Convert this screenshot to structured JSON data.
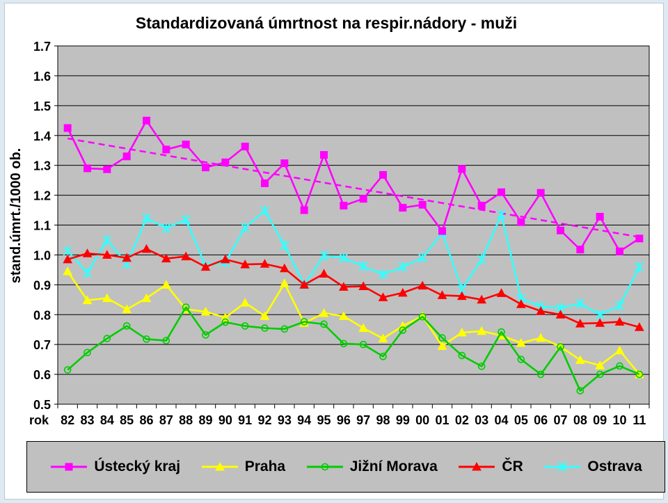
{
  "chart_data": {
    "type": "line",
    "title": "Standardizovaná úmrtnost na respir.nádory - muži",
    "ylabel": "stand.úmrt./1000 ob.",
    "xlabel": "rok",
    "ylim": [
      0.5,
      1.7
    ],
    "yticks": [
      "0.5",
      "0.6",
      "0.7",
      "0.8",
      "0.9",
      "1.0",
      "1.1",
      "1.2",
      "1.3",
      "1.4",
      "1.5",
      "1.6",
      "1.7"
    ],
    "categories": [
      "82",
      "83",
      "84",
      "85",
      "86",
      "87",
      "88",
      "89",
      "90",
      "91",
      "92",
      "93",
      "94",
      "95",
      "96",
      "97",
      "98",
      "99",
      "00",
      "01",
      "02",
      "03",
      "04",
      "05",
      "06",
      "07",
      "08",
      "09",
      "10",
      "11"
    ],
    "grid": true,
    "legend_position": "bottom",
    "trendline": {
      "series": "Ústecký kraj",
      "from": 1.39,
      "to": 1.06,
      "color": "#ff00ff"
    },
    "series": [
      {
        "name": "Ústecký kraj",
        "color": "#ff00ff",
        "marker": "square",
        "values": [
          1.425,
          1.29,
          1.287,
          1.33,
          1.45,
          1.353,
          1.37,
          1.293,
          1.31,
          1.363,
          1.24,
          1.307,
          1.15,
          1.335,
          1.165,
          1.188,
          1.268,
          1.158,
          1.168,
          1.08,
          1.288,
          1.165,
          1.21,
          1.11,
          1.208,
          1.082,
          1.018,
          1.128,
          1.012,
          1.055
        ]
      },
      {
        "name": "Praha",
        "color": "#ffff00",
        "marker": "triangle",
        "values": [
          0.945,
          0.848,
          0.855,
          0.818,
          0.855,
          0.9,
          0.818,
          0.81,
          0.79,
          0.84,
          0.795,
          0.905,
          0.772,
          0.805,
          0.795,
          0.755,
          0.72,
          0.762,
          0.795,
          0.695,
          0.74,
          0.745,
          0.73,
          0.705,
          0.722,
          0.693,
          0.648,
          0.63,
          0.68,
          0.6
        ]
      },
      {
        "name": "Jižní Morava",
        "color": "#00cc00",
        "marker": "circle",
        "values": [
          0.615,
          0.673,
          0.72,
          0.762,
          0.718,
          0.713,
          0.825,
          0.732,
          0.775,
          0.762,
          0.755,
          0.752,
          0.776,
          0.768,
          0.703,
          0.7,
          0.66,
          0.748,
          0.793,
          0.722,
          0.663,
          0.627,
          0.742,
          0.65,
          0.6,
          0.692,
          0.545,
          0.6,
          0.628,
          0.6
        ]
      },
      {
        "name": "ČR",
        "color": "#ff0000",
        "marker": "triangle",
        "values": [
          0.985,
          1.005,
          1.0,
          0.99,
          1.02,
          0.988,
          0.995,
          0.96,
          0.985,
          0.968,
          0.97,
          0.955,
          0.9,
          0.937,
          0.893,
          0.895,
          0.858,
          0.873,
          0.897,
          0.865,
          0.862,
          0.85,
          0.872,
          0.835,
          0.812,
          0.8,
          0.77,
          0.772,
          0.776,
          0.758
        ]
      },
      {
        "name": "Ostrava",
        "color": "#33ffff",
        "marker": "star",
        "values": [
          1.013,
          0.94,
          1.05,
          0.97,
          1.123,
          1.09,
          1.118,
          0.963,
          0.975,
          1.092,
          1.148,
          1.032,
          0.9,
          0.998,
          0.99,
          0.962,
          0.935,
          0.96,
          0.99,
          1.075,
          0.885,
          0.985,
          1.135,
          0.855,
          0.827,
          0.822,
          0.837,
          0.8,
          0.83,
          0.96
        ]
      }
    ]
  }
}
